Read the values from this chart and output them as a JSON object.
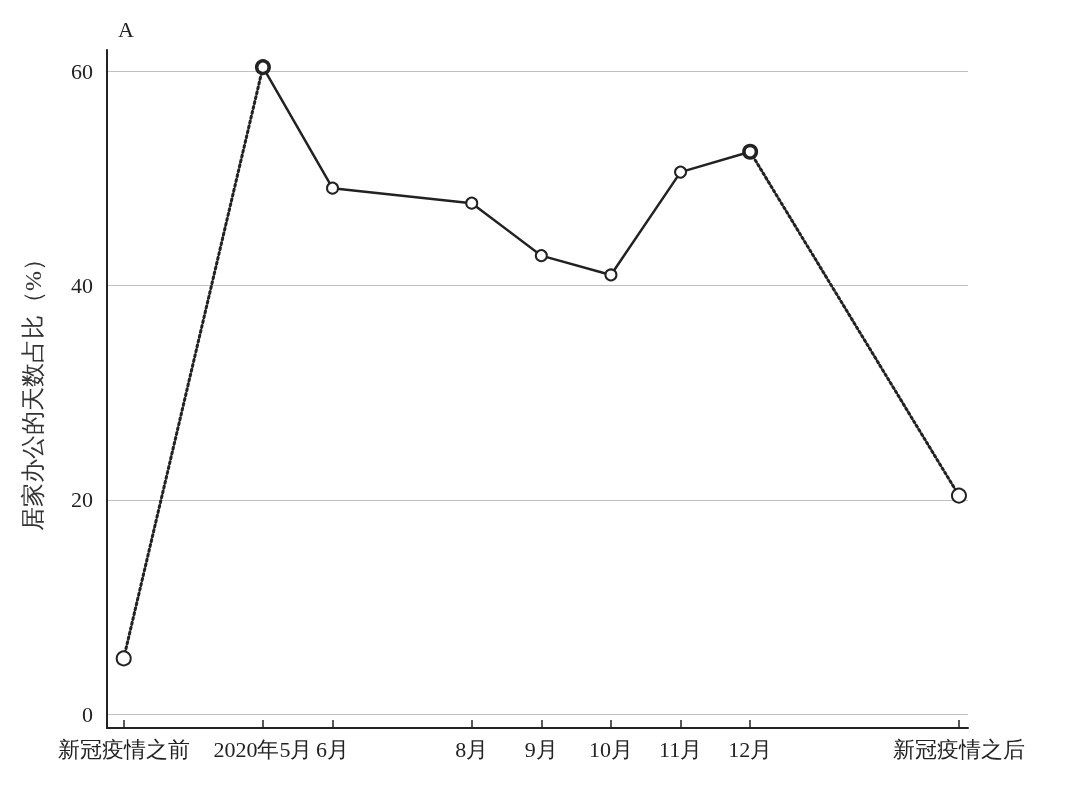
{
  "chart_data": {
    "type": "line",
    "ylabel": "居家办公的天数占比（%）",
    "annotations": [
      "A"
    ],
    "xlim": [
      2.76,
      15.13
    ],
    "xticks": [
      {
        "value": 3,
        "label": "新冠疫情之前"
      },
      {
        "value": 5,
        "label": "2020年5月"
      },
      {
        "value": 6,
        "label": "6月"
      },
      {
        "value": 8,
        "label": "8月"
      },
      {
        "value": 9,
        "label": "9月"
      },
      {
        "value": 10,
        "label": "10月"
      },
      {
        "value": 11,
        "label": "11月"
      },
      {
        "value": 12,
        "label": "12月"
      },
      {
        "value": 15,
        "label": "新冠疫情之后"
      }
    ],
    "ylim": [
      -1.3,
      62
    ],
    "yticks": [
      0,
      20,
      40,
      60
    ],
    "grid": "y",
    "marker": "circle",
    "series": [
      {
        "color": "#222222",
        "line_style": "dotted",
        "x": [
          3,
          5
        ],
        "values": [
          5.2,
          60.4
        ]
      },
      {
        "color": "#222222",
        "line_style": "solid",
        "x": [
          5,
          6,
          8,
          9,
          10,
          11,
          12
        ],
        "values": [
          60.4,
          49.1,
          47.7,
          42.8,
          41.0,
          50.6,
          52.5
        ]
      },
      {
        "color": "#222222",
        "line_style": "dotted",
        "x": [
          12,
          15
        ],
        "values": [
          52.5,
          20.4
        ]
      }
    ]
  }
}
